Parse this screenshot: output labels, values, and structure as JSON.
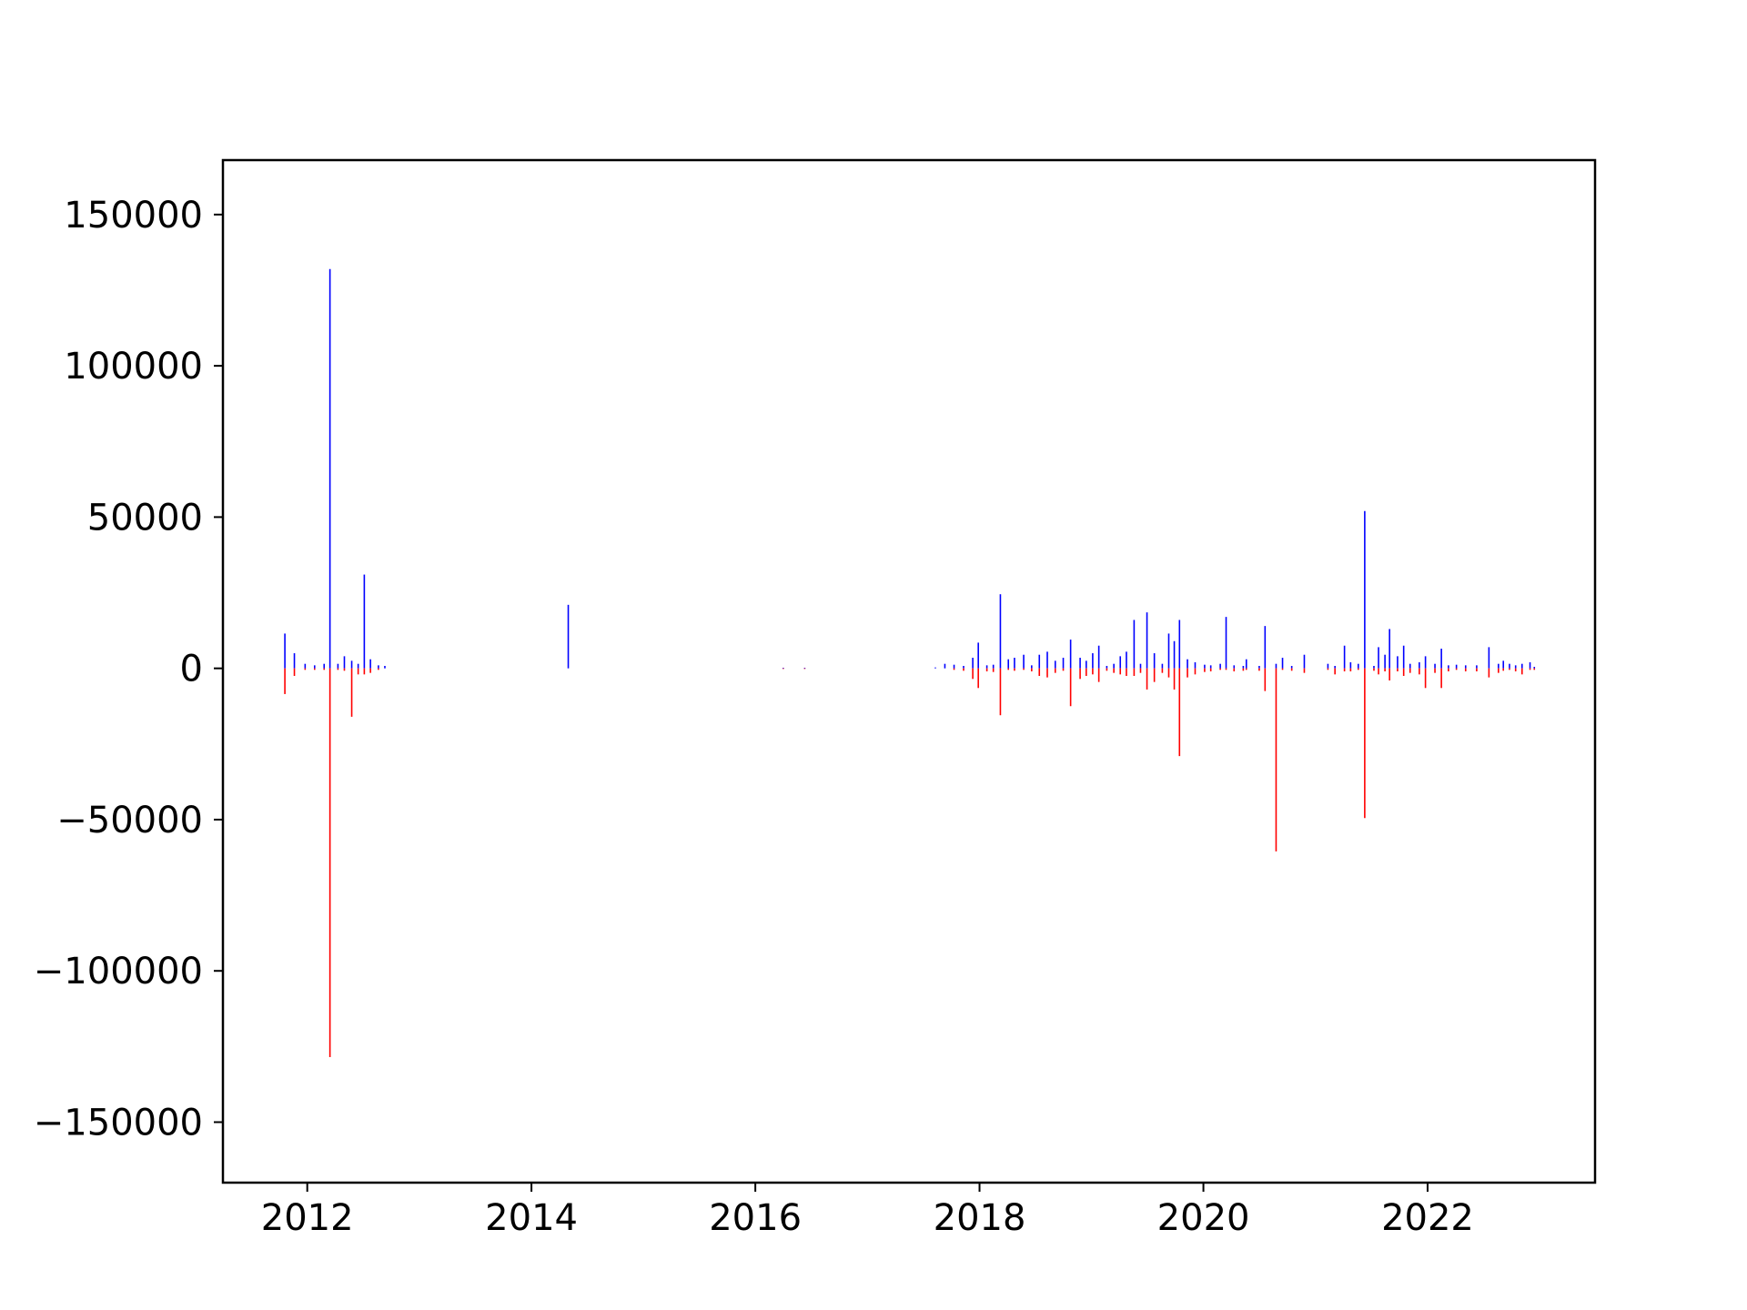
{
  "chart_data": {
    "type": "bar",
    "title": "",
    "xlabel": "",
    "ylabel": "",
    "xlim": [
      "2011-04-01",
      "2023-07-01"
    ],
    "ylim": [
      -170000,
      168000
    ],
    "grid": false,
    "legend": "none",
    "colors": {
      "positive": "#0000ff",
      "negative": "#ff0000",
      "frame": "#000000"
    },
    "x_ticks": [
      {
        "date": "2012-01-01",
        "label": "2012"
      },
      {
        "date": "2014-01-01",
        "label": "2014"
      },
      {
        "date": "2016-01-01",
        "label": "2016"
      },
      {
        "date": "2018-01-01",
        "label": "2018"
      },
      {
        "date": "2020-01-01",
        "label": "2020"
      },
      {
        "date": "2022-01-01",
        "label": "2022"
      }
    ],
    "y_ticks": [
      {
        "value": 150000,
        "label": "150000"
      },
      {
        "value": 100000,
        "label": "100000"
      },
      {
        "value": 50000,
        "label": "50000"
      },
      {
        "value": 0,
        "label": "0"
      },
      {
        "value": -50000,
        "label": "−50000"
      },
      {
        "value": -100000,
        "label": "−100000"
      },
      {
        "value": -150000,
        "label": "−150000"
      }
    ],
    "series": [
      {
        "color": "#0000ff",
        "points": [
          [
            "2011-10-20",
            11500
          ],
          [
            "2011-11-20",
            5000
          ],
          [
            "2011-12-25",
            1500
          ],
          [
            "2012-01-25",
            1000
          ],
          [
            "2012-02-25",
            1500
          ],
          [
            "2012-03-15",
            132000
          ],
          [
            "2012-04-10",
            1500
          ],
          [
            "2012-05-01",
            4000
          ],
          [
            "2012-05-25",
            2500
          ],
          [
            "2012-06-15",
            1500
          ],
          [
            "2012-07-05",
            31000
          ],
          [
            "2012-07-25",
            3000
          ],
          [
            "2012-08-20",
            1000
          ],
          [
            "2012-09-10",
            800
          ],
          [
            "2014-05-01",
            21000
          ],
          [
            "2016-04-01",
            200
          ],
          [
            "2016-06-10",
            200
          ],
          [
            "2017-08-10",
            300
          ],
          [
            "2017-09-10",
            1500
          ],
          [
            "2017-10-10",
            1200
          ],
          [
            "2017-11-10",
            800
          ],
          [
            "2017-12-10",
            3500
          ],
          [
            "2017-12-28",
            8500
          ],
          [
            "2018-01-25",
            1000
          ],
          [
            "2018-02-15",
            1200
          ],
          [
            "2018-03-10",
            24500
          ],
          [
            "2018-04-05",
            3000
          ],
          [
            "2018-04-25",
            3500
          ],
          [
            "2018-05-25",
            4500
          ],
          [
            "2018-06-20",
            1000
          ],
          [
            "2018-07-15",
            4500
          ],
          [
            "2018-08-10",
            5500
          ],
          [
            "2018-09-05",
            2500
          ],
          [
            "2018-10-01",
            3500
          ],
          [
            "2018-10-25",
            9500
          ],
          [
            "2018-11-25",
            3500
          ],
          [
            "2018-12-15",
            2500
          ],
          [
            "2019-01-05",
            5000
          ],
          [
            "2019-01-25",
            7500
          ],
          [
            "2019-02-20",
            800
          ],
          [
            "2019-03-15",
            1500
          ],
          [
            "2019-04-05",
            4000
          ],
          [
            "2019-04-25",
            5500
          ],
          [
            "2019-05-20",
            16000
          ],
          [
            "2019-06-10",
            1500
          ],
          [
            "2019-07-01",
            18500
          ],
          [
            "2019-07-25",
            5000
          ],
          [
            "2019-08-20",
            1500
          ],
          [
            "2019-09-10",
            11500
          ],
          [
            "2019-09-28",
            9000
          ],
          [
            "2019-10-15",
            16000
          ],
          [
            "2019-11-10",
            3000
          ],
          [
            "2019-12-05",
            2000
          ],
          [
            "2020-01-05",
            1200
          ],
          [
            "2020-01-25",
            1000
          ],
          [
            "2020-02-25",
            1500
          ],
          [
            "2020-03-15",
            17000
          ],
          [
            "2020-04-10",
            1000
          ],
          [
            "2020-05-10",
            800
          ],
          [
            "2020-05-20",
            3000
          ],
          [
            "2020-07-01",
            800
          ],
          [
            "2020-07-20",
            14000
          ],
          [
            "2020-08-25",
            1500
          ],
          [
            "2020-09-15",
            3500
          ],
          [
            "2020-10-15",
            800
          ],
          [
            "2020-11-25",
            4500
          ],
          [
            "2021-02-10",
            1500
          ],
          [
            "2021-03-05",
            800
          ],
          [
            "2021-04-05",
            7500
          ],
          [
            "2021-04-25",
            2000
          ],
          [
            "2021-05-20",
            1500
          ],
          [
            "2021-06-10",
            52000
          ],
          [
            "2021-07-10",
            800
          ],
          [
            "2021-07-25",
            7000
          ],
          [
            "2021-08-15",
            4500
          ],
          [
            "2021-08-30",
            13000
          ],
          [
            "2021-09-25",
            4000
          ],
          [
            "2021-10-15",
            7500
          ],
          [
            "2021-11-05",
            1500
          ],
          [
            "2021-12-05",
            2000
          ],
          [
            "2021-12-25",
            4000
          ],
          [
            "2022-01-25",
            1500
          ],
          [
            "2022-02-15",
            6500
          ],
          [
            "2022-03-10",
            1000
          ],
          [
            "2022-04-05",
            1200
          ],
          [
            "2022-05-05",
            1000
          ],
          [
            "2022-06-10",
            1000
          ],
          [
            "2022-07-20",
            7000
          ],
          [
            "2022-08-20",
            1500
          ],
          [
            "2022-09-05",
            2500
          ],
          [
            "2022-09-25",
            1500
          ],
          [
            "2022-10-15",
            1000
          ],
          [
            "2022-11-05",
            1500
          ],
          [
            "2022-12-01",
            2000
          ],
          [
            "2022-12-15",
            500
          ]
        ]
      },
      {
        "color": "#ff0000",
        "points": [
          [
            "2011-10-20",
            -8500
          ],
          [
            "2011-11-20",
            -2500
          ],
          [
            "2011-12-25",
            -500
          ],
          [
            "2012-01-25",
            -500
          ],
          [
            "2012-02-25",
            -500
          ],
          [
            "2012-03-15",
            -128500
          ],
          [
            "2012-04-10",
            -500
          ],
          [
            "2012-05-01",
            -800
          ],
          [
            "2012-05-25",
            -16000
          ],
          [
            "2012-06-15",
            -2000
          ],
          [
            "2012-07-05",
            -2000
          ],
          [
            "2012-07-25",
            -1500
          ],
          [
            "2012-08-20",
            -500
          ],
          [
            "2016-04-01",
            -200
          ],
          [
            "2016-06-10",
            -200
          ],
          [
            "2017-10-10",
            -500
          ],
          [
            "2017-11-10",
            -800
          ],
          [
            "2017-12-10",
            -3500
          ],
          [
            "2017-12-28",
            -6500
          ],
          [
            "2018-01-25",
            -1000
          ],
          [
            "2018-02-15",
            -1200
          ],
          [
            "2018-03-10",
            -15500
          ],
          [
            "2018-04-05",
            -500
          ],
          [
            "2018-04-25",
            -800
          ],
          [
            "2018-05-25",
            -500
          ],
          [
            "2018-06-20",
            -1000
          ],
          [
            "2018-07-15",
            -2500
          ],
          [
            "2018-08-10",
            -3000
          ],
          [
            "2018-09-05",
            -1500
          ],
          [
            "2018-10-01",
            -800
          ],
          [
            "2018-10-25",
            -12500
          ],
          [
            "2018-11-25",
            -3500
          ],
          [
            "2018-12-15",
            -2500
          ],
          [
            "2019-01-05",
            -2000
          ],
          [
            "2019-01-25",
            -4500
          ],
          [
            "2019-02-20",
            -800
          ],
          [
            "2019-03-15",
            -1500
          ],
          [
            "2019-04-05",
            -2000
          ],
          [
            "2019-04-25",
            -2500
          ],
          [
            "2019-05-20",
            -2500
          ],
          [
            "2019-06-10",
            -1500
          ],
          [
            "2019-07-01",
            -7000
          ],
          [
            "2019-07-25",
            -4500
          ],
          [
            "2019-08-20",
            -1500
          ],
          [
            "2019-09-10",
            -3000
          ],
          [
            "2019-09-28",
            -7000
          ],
          [
            "2019-10-15",
            -29000
          ],
          [
            "2019-11-10",
            -3000
          ],
          [
            "2019-12-05",
            -2000
          ],
          [
            "2020-01-05",
            -1200
          ],
          [
            "2020-01-25",
            -1000
          ],
          [
            "2020-02-25",
            -500
          ],
          [
            "2020-03-15",
            -500
          ],
          [
            "2020-04-10",
            -1000
          ],
          [
            "2020-05-10",
            -800
          ],
          [
            "2020-05-20",
            -500
          ],
          [
            "2020-07-01",
            -800
          ],
          [
            "2020-07-20",
            -7500
          ],
          [
            "2020-08-25",
            -60500
          ],
          [
            "2020-09-15",
            -500
          ],
          [
            "2020-10-15",
            -800
          ],
          [
            "2020-11-25",
            -1500
          ],
          [
            "2021-02-10",
            -500
          ],
          [
            "2021-03-05",
            -2000
          ],
          [
            "2021-04-05",
            -1000
          ],
          [
            "2021-04-25",
            -1000
          ],
          [
            "2021-05-20",
            -500
          ],
          [
            "2021-06-10",
            -49500
          ],
          [
            "2021-07-10",
            -800
          ],
          [
            "2021-07-25",
            -2000
          ],
          [
            "2021-08-15",
            -1000
          ],
          [
            "2021-08-30",
            -4000
          ],
          [
            "2021-09-25",
            -1000
          ],
          [
            "2021-10-15",
            -2500
          ],
          [
            "2021-11-05",
            -1500
          ],
          [
            "2021-12-05",
            -2000
          ],
          [
            "2021-12-25",
            -6500
          ],
          [
            "2022-01-25",
            -1500
          ],
          [
            "2022-02-15",
            -6500
          ],
          [
            "2022-03-10",
            -1000
          ],
          [
            "2022-04-05",
            -500
          ],
          [
            "2022-05-05",
            -1000
          ],
          [
            "2022-06-10",
            -1000
          ],
          [
            "2022-07-20",
            -3000
          ],
          [
            "2022-08-20",
            -1500
          ],
          [
            "2022-09-05",
            -800
          ],
          [
            "2022-09-25",
            -500
          ],
          [
            "2022-10-15",
            -1000
          ],
          [
            "2022-11-05",
            -2000
          ],
          [
            "2022-12-01",
            -500
          ],
          [
            "2022-12-15",
            -500
          ]
        ]
      }
    ]
  }
}
